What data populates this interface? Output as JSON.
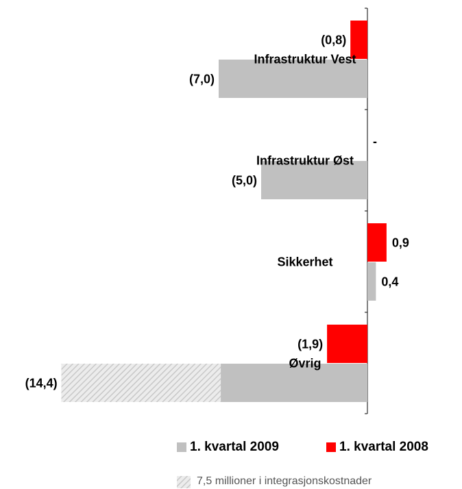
{
  "chart_data": {
    "type": "hbar",
    "categories": [
      "Infrastruktur Vest",
      "Infrastruktur Øst",
      "Sikkerhet",
      "Øvrig"
    ],
    "series": [
      {
        "name": "1. kvartal 2009",
        "color": "#c0c0c0",
        "values": [
          -7.0,
          -5.0,
          0.4,
          -14.4
        ],
        "value_labels": [
          "(7,0)",
          "(5,0)",
          "0,4",
          "(14,4)"
        ]
      },
      {
        "name": "1. kvartal 2008",
        "color": "#ff0000",
        "values": [
          -0.8,
          0,
          0.9,
          -1.9
        ],
        "value_labels": [
          "(0,8)",
          "-",
          "0,9",
          "(1,9)"
        ]
      }
    ],
    "xlim": [
      -15,
      1
    ],
    "annotation": "7,5 millioner i integrasjonskostnader",
    "annotation_value": 7.5
  }
}
